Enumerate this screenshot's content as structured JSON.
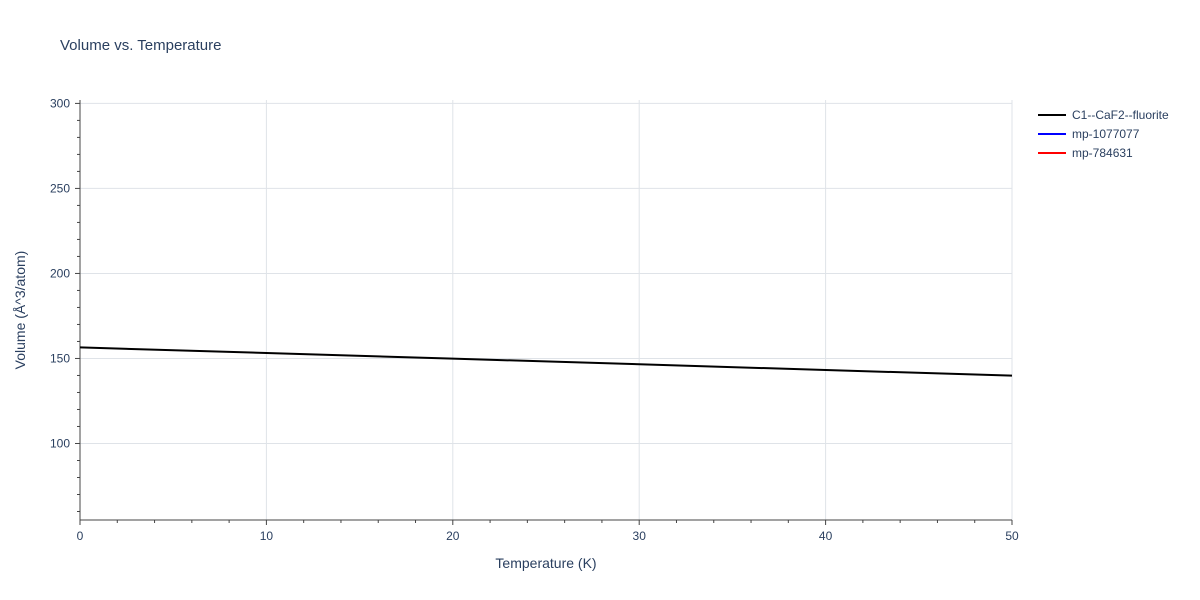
{
  "chart_data": {
    "type": "line",
    "title": "Volume vs. Temperature",
    "xlabel": "Temperature (K)",
    "ylabel": "Volume (Å^3/atom)",
    "xlim": [
      0,
      50
    ],
    "ylim": [
      55,
      302
    ],
    "xticks": [
      0,
      10,
      20,
      30,
      40,
      50
    ],
    "yticks": [
      100,
      150,
      200,
      250,
      300
    ],
    "grid": true,
    "legend_position": "top-right",
    "series": [
      {
        "name": "C1--CaF2--fluorite",
        "color": "#000000",
        "x": [
          0,
          10,
          20,
          30,
          40,
          50
        ],
        "y": [
          156.5,
          153.2,
          149.9,
          146.6,
          143.2,
          139.9
        ]
      },
      {
        "name": "mp-1077077",
        "color": "#0000ff",
        "x": [],
        "y": []
      },
      {
        "name": "mp-784631",
        "color": "#ff0000",
        "x": [],
        "y": []
      }
    ]
  }
}
